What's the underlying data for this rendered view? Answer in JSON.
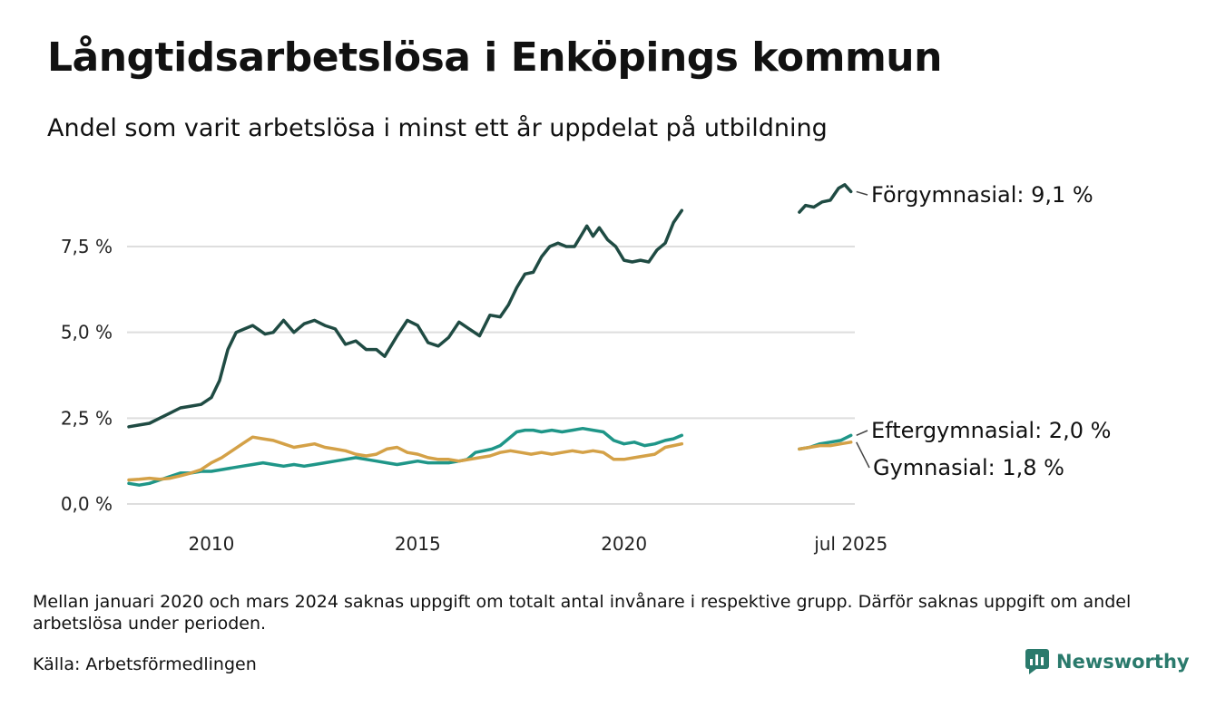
{
  "title": "Långtidsarbetslösa i Enköpings kommun",
  "subtitle": "Andel som varit arbetslösa i minst ett år uppdelat på utbildning",
  "footnote": "Mellan januari 2020 och mars 2024 saknas uppgift om totalt antal invånare i respektive grupp. Därför saknas uppgift om andel arbetslösa under perioden.",
  "source": "Källa: Arbetsförmedlingen",
  "brand": "Newsworthy",
  "colors": {
    "brand": "#2a7a6c"
  },
  "chart_data": {
    "type": "line",
    "ylim": [
      0,
      10
    ],
    "yticks": [
      0,
      2.5,
      5,
      7.5
    ],
    "ytick_labels": [
      "0,0 %",
      "2,5 %",
      "5,0 %",
      "7,5 %"
    ],
    "xlim": [
      2008.0,
      2025.55
    ],
    "xticks": [
      2010,
      2015,
      2020,
      2025.5
    ],
    "xtick_labels": [
      "2010",
      "2015",
      "2020",
      "jul 2025"
    ],
    "grid": true,
    "series": [
      {
        "name": "Förgymnasial",
        "label": "Förgymnasial: 9,1 %",
        "color": "#1f4b43",
        "segments": [
          [
            [
              2008.0,
              2.25
            ],
            [
              2008.25,
              2.3
            ],
            [
              2008.5,
              2.35
            ],
            [
              2008.75,
              2.5
            ],
            [
              2009.0,
              2.65
            ],
            [
              2009.25,
              2.8
            ],
            [
              2009.5,
              2.85
            ],
            [
              2009.75,
              2.9
            ],
            [
              2010.0,
              3.1
            ],
            [
              2010.2,
              3.6
            ],
            [
              2010.4,
              4.5
            ],
            [
              2010.6,
              5.0
            ],
            [
              2010.8,
              5.1
            ],
            [
              2011.0,
              5.2
            ],
            [
              2011.3,
              4.95
            ],
            [
              2011.5,
              5.0
            ],
            [
              2011.75,
              5.35
            ],
            [
              2012.0,
              5.0
            ],
            [
              2012.25,
              5.25
            ],
            [
              2012.5,
              5.35
            ],
            [
              2012.75,
              5.2
            ],
            [
              2013.0,
              5.1
            ],
            [
              2013.25,
              4.65
            ],
            [
              2013.5,
              4.75
            ],
            [
              2013.75,
              4.5
            ],
            [
              2014.0,
              4.5
            ],
            [
              2014.2,
              4.3
            ],
            [
              2014.5,
              4.9
            ],
            [
              2014.75,
              5.35
            ],
            [
              2015.0,
              5.2
            ],
            [
              2015.25,
              4.7
            ],
            [
              2015.5,
              4.6
            ],
            [
              2015.75,
              4.85
            ],
            [
              2016.0,
              5.3
            ],
            [
              2016.25,
              5.1
            ],
            [
              2016.5,
              4.9
            ],
            [
              2016.75,
              5.5
            ],
            [
              2017.0,
              5.45
            ],
            [
              2017.2,
              5.8
            ],
            [
              2017.4,
              6.3
            ],
            [
              2017.6,
              6.7
            ],
            [
              2017.8,
              6.75
            ],
            [
              2018.0,
              7.2
            ],
            [
              2018.2,
              7.5
            ],
            [
              2018.4,
              7.6
            ],
            [
              2018.6,
              7.5
            ],
            [
              2018.8,
              7.5
            ],
            [
              2019.0,
              7.9
            ],
            [
              2019.1,
              8.1
            ],
            [
              2019.25,
              7.8
            ],
            [
              2019.4,
              8.05
            ],
            [
              2019.6,
              7.7
            ],
            [
              2019.8,
              7.5
            ],
            [
              2020.0,
              7.1
            ],
            [
              2020.2,
              7.05
            ],
            [
              2020.4,
              7.1
            ],
            [
              2020.6,
              7.05
            ],
            [
              2020.8,
              7.4
            ],
            [
              2021.0,
              7.6
            ],
            [
              2021.2,
              8.2
            ],
            [
              2021.4,
              8.55
            ]
          ],
          [
            [
              2024.25,
              8.5
            ],
            [
              2024.4,
              8.7
            ],
            [
              2024.6,
              8.65
            ],
            [
              2024.8,
              8.8
            ],
            [
              2025.0,
              8.85
            ],
            [
              2025.2,
              9.2
            ],
            [
              2025.35,
              9.3
            ],
            [
              2025.5,
              9.1
            ]
          ]
        ]
      },
      {
        "name": "Eftergymnasial",
        "label": "Eftergymnasial: 2,0 %",
        "color": "#1f9688",
        "segments": [
          [
            [
              2008.0,
              0.6
            ],
            [
              2008.25,
              0.55
            ],
            [
              2008.5,
              0.6
            ],
            [
              2008.75,
              0.7
            ],
            [
              2009.0,
              0.8
            ],
            [
              2009.25,
              0.9
            ],
            [
              2009.5,
              0.9
            ],
            [
              2009.75,
              0.95
            ],
            [
              2010.0,
              0.95
            ],
            [
              2010.25,
              1.0
            ],
            [
              2010.5,
              1.05
            ],
            [
              2010.75,
              1.1
            ],
            [
              2011.0,
              1.15
            ],
            [
              2011.25,
              1.2
            ],
            [
              2011.5,
              1.15
            ],
            [
              2011.75,
              1.1
            ],
            [
              2012.0,
              1.15
            ],
            [
              2012.25,
              1.1
            ],
            [
              2012.5,
              1.15
            ],
            [
              2012.75,
              1.2
            ],
            [
              2013.0,
              1.25
            ],
            [
              2013.25,
              1.3
            ],
            [
              2013.5,
              1.35
            ],
            [
              2013.75,
              1.3
            ],
            [
              2014.0,
              1.25
            ],
            [
              2014.25,
              1.2
            ],
            [
              2014.5,
              1.15
            ],
            [
              2014.75,
              1.2
            ],
            [
              2015.0,
              1.25
            ],
            [
              2015.25,
              1.2
            ],
            [
              2015.5,
              1.2
            ],
            [
              2015.75,
              1.2
            ],
            [
              2016.0,
              1.25
            ],
            [
              2016.2,
              1.3
            ],
            [
              2016.4,
              1.5
            ],
            [
              2016.6,
              1.55
            ],
            [
              2016.8,
              1.6
            ],
            [
              2017.0,
              1.7
            ],
            [
              2017.2,
              1.9
            ],
            [
              2017.4,
              2.1
            ],
            [
              2017.6,
              2.15
            ],
            [
              2017.8,
              2.15
            ],
            [
              2018.0,
              2.1
            ],
            [
              2018.25,
              2.15
            ],
            [
              2018.5,
              2.1
            ],
            [
              2018.75,
              2.15
            ],
            [
              2019.0,
              2.2
            ],
            [
              2019.25,
              2.15
            ],
            [
              2019.5,
              2.1
            ],
            [
              2019.75,
              1.85
            ],
            [
              2020.0,
              1.75
            ],
            [
              2020.25,
              1.8
            ],
            [
              2020.5,
              1.7
            ],
            [
              2020.75,
              1.75
            ],
            [
              2021.0,
              1.85
            ],
            [
              2021.2,
              1.9
            ],
            [
              2021.4,
              2.0
            ]
          ],
          [
            [
              2024.25,
              1.6
            ],
            [
              2024.5,
              1.65
            ],
            [
              2024.75,
              1.75
            ],
            [
              2025.0,
              1.8
            ],
            [
              2025.25,
              1.85
            ],
            [
              2025.5,
              2.0
            ]
          ]
        ]
      },
      {
        "name": "Gymnasial",
        "label": "Gymnasial: 1,8 %",
        "color": "#d4a147",
        "segments": [
          [
            [
              2008.0,
              0.7
            ],
            [
              2008.25,
              0.72
            ],
            [
              2008.5,
              0.75
            ],
            [
              2008.75,
              0.72
            ],
            [
              2009.0,
              0.75
            ],
            [
              2009.25,
              0.82
            ],
            [
              2009.5,
              0.9
            ],
            [
              2009.75,
              1.0
            ],
            [
              2010.0,
              1.2
            ],
            [
              2010.25,
              1.35
            ],
            [
              2010.5,
              1.55
            ],
            [
              2010.75,
              1.75
            ],
            [
              2011.0,
              1.95
            ],
            [
              2011.25,
              1.9
            ],
            [
              2011.5,
              1.85
            ],
            [
              2011.75,
              1.75
            ],
            [
              2012.0,
              1.65
            ],
            [
              2012.25,
              1.7
            ],
            [
              2012.5,
              1.75
            ],
            [
              2012.75,
              1.65
            ],
            [
              2013.0,
              1.6
            ],
            [
              2013.25,
              1.55
            ],
            [
              2013.5,
              1.45
            ],
            [
              2013.75,
              1.4
            ],
            [
              2014.0,
              1.45
            ],
            [
              2014.25,
              1.6
            ],
            [
              2014.5,
              1.65
            ],
            [
              2014.75,
              1.5
            ],
            [
              2015.0,
              1.45
            ],
            [
              2015.25,
              1.35
            ],
            [
              2015.5,
              1.3
            ],
            [
              2015.75,
              1.3
            ],
            [
              2016.0,
              1.25
            ],
            [
              2016.25,
              1.3
            ],
            [
              2016.5,
              1.35
            ],
            [
              2016.75,
              1.4
            ],
            [
              2017.0,
              1.5
            ],
            [
              2017.25,
              1.55
            ],
            [
              2017.5,
              1.5
            ],
            [
              2017.75,
              1.45
            ],
            [
              2018.0,
              1.5
            ],
            [
              2018.25,
              1.45
            ],
            [
              2018.5,
              1.5
            ],
            [
              2018.75,
              1.55
            ],
            [
              2019.0,
              1.5
            ],
            [
              2019.25,
              1.55
            ],
            [
              2019.5,
              1.5
            ],
            [
              2019.75,
              1.3
            ],
            [
              2020.0,
              1.3
            ],
            [
              2020.25,
              1.35
            ],
            [
              2020.5,
              1.4
            ],
            [
              2020.75,
              1.45
            ],
            [
              2021.0,
              1.65
            ],
            [
              2021.2,
              1.7
            ],
            [
              2021.4,
              1.75
            ]
          ],
          [
            [
              2024.25,
              1.6
            ],
            [
              2024.5,
              1.65
            ],
            [
              2024.75,
              1.7
            ],
            [
              2025.0,
              1.7
            ],
            [
              2025.25,
              1.75
            ],
            [
              2025.5,
              1.8
            ]
          ]
        ]
      }
    ]
  }
}
